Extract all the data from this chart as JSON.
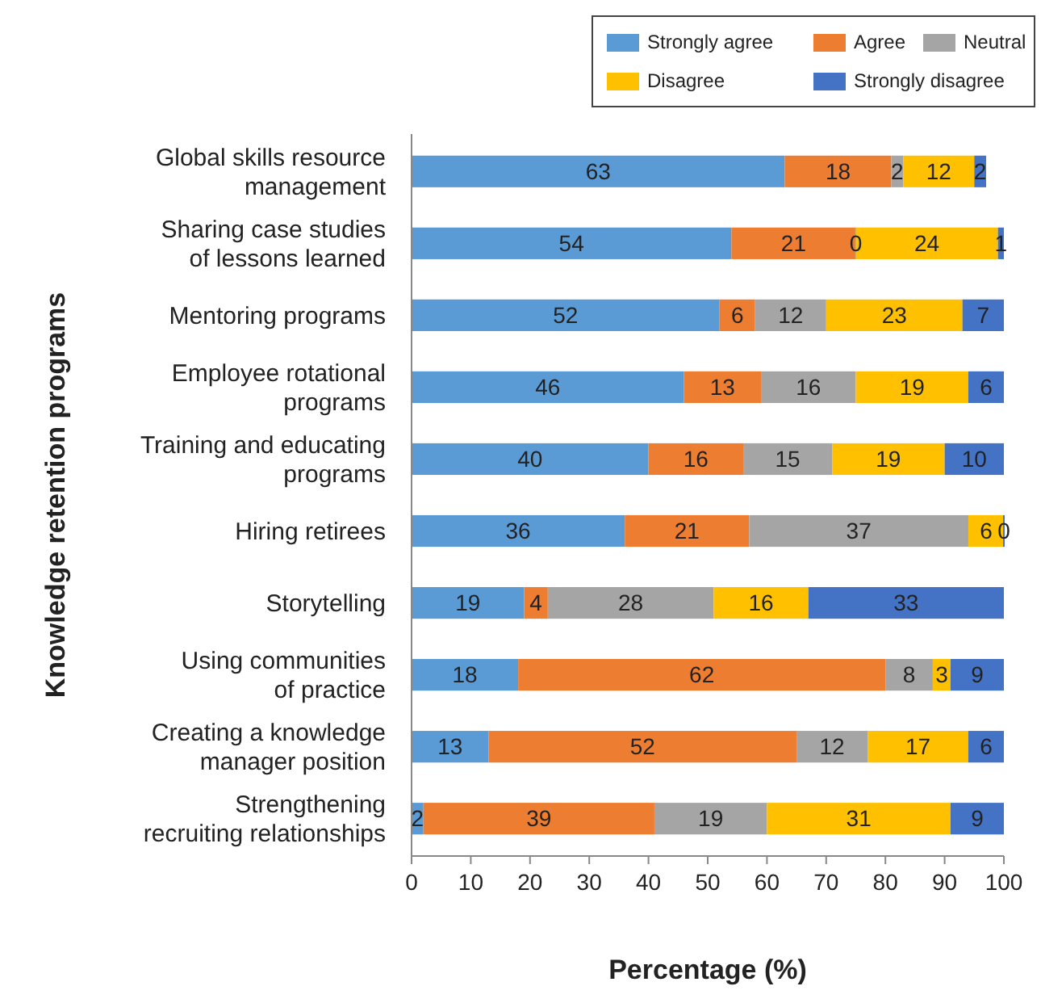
{
  "chart_data": {
    "type": "bar",
    "orientation": "horizontal",
    "stacked": true,
    "data_labels": true,
    "legend": "top right",
    "grid": false,
    "xlabel": "Percentage (%)",
    "ylabel": "Knowledge retention programs",
    "categories": [
      "Global skills resource\nmanagement",
      "Sharing case studies\nof lessons learned",
      "Mentoring programs",
      "Employee rotational\nprograms",
      "Training and educating\nprograms",
      "Hiring retirees",
      "Storytelling",
      "Using communities\nof practice",
      "Creating a knowledge\nmanager position",
      "Strengthening\nrecruiting relationships"
    ],
    "xlim": [
      0,
      100
    ],
    "xticks": [
      0,
      10,
      20,
      30,
      40,
      50,
      60,
      70,
      80,
      90,
      100
    ],
    "series": [
      {
        "name": "Strongly agree",
        "color": "#5b9bd5",
        "values": [
          63,
          54,
          52,
          46,
          40,
          36,
          19,
          18,
          13,
          2
        ]
      },
      {
        "name": "Agree",
        "color": "#ed7d31",
        "values": [
          18,
          21,
          6,
          13,
          16,
          21,
          4,
          62,
          52,
          39
        ]
      },
      {
        "name": "Neutral",
        "color": "#a5a5a5",
        "values": [
          2,
          0,
          12,
          16,
          15,
          37,
          28,
          8,
          12,
          19
        ]
      },
      {
        "name": "Disagree",
        "color": "#ffc000",
        "values": [
          12,
          24,
          23,
          19,
          19,
          6,
          16,
          3,
          17,
          31
        ]
      },
      {
        "name": "Strongly disagree",
        "color": "#4472c4",
        "values": [
          2,
          1,
          7,
          6,
          10,
          0,
          33,
          9,
          6,
          9
        ]
      }
    ]
  }
}
